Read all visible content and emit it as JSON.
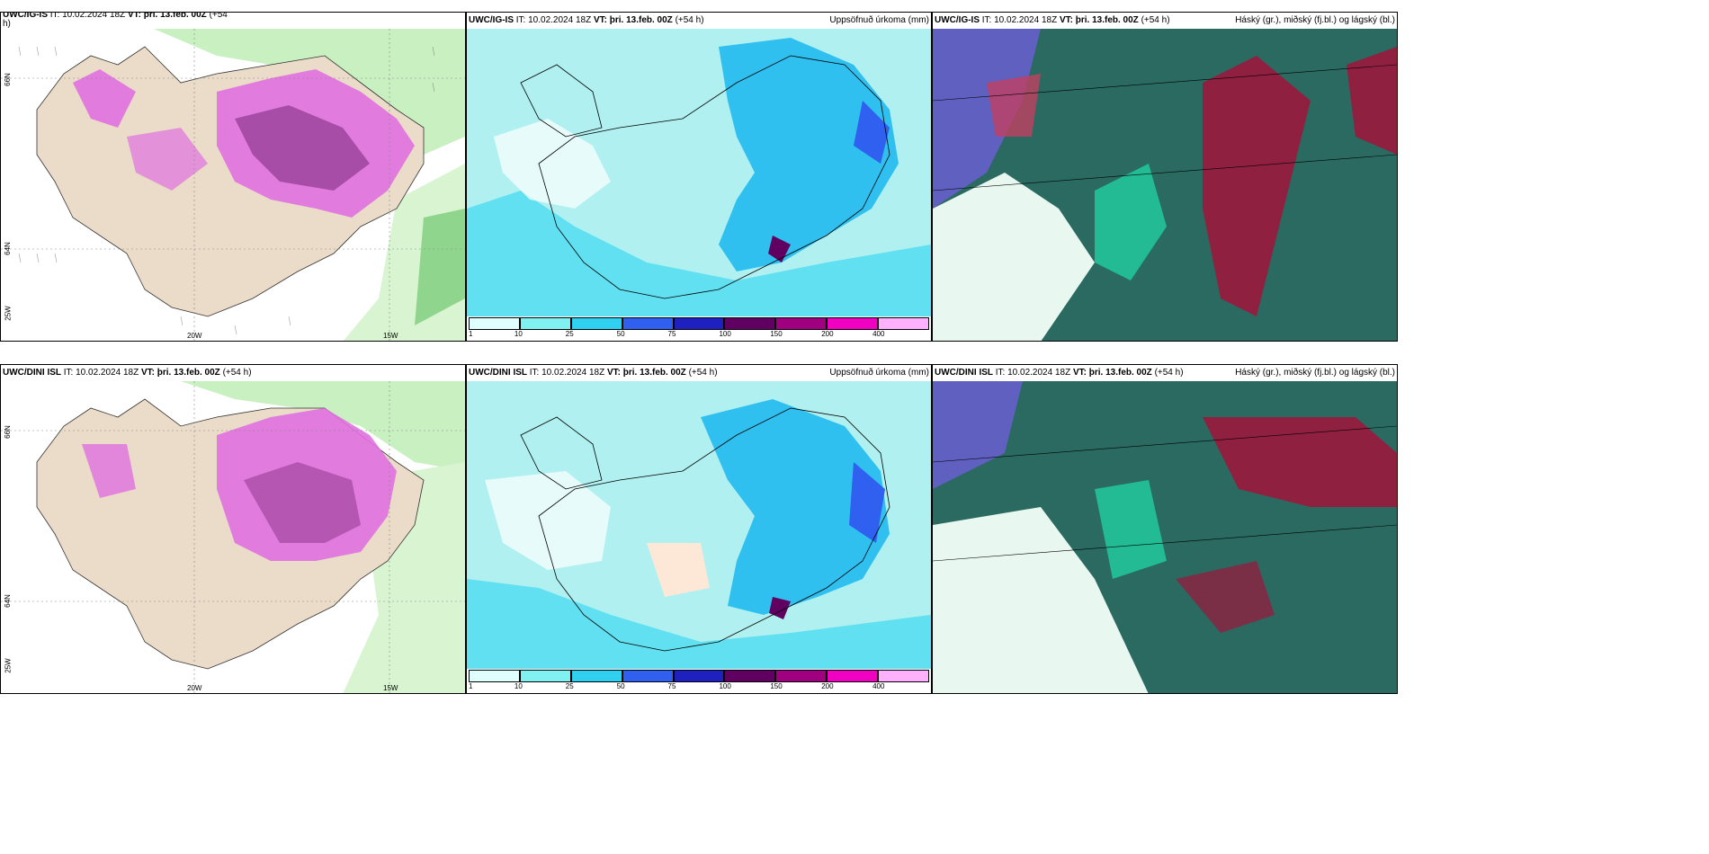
{
  "panels": {
    "p1": {
      "title_left": "UWC/IG-IS",
      "it": "IT: 10.02.2024 18Z",
      "vt": "VT: þri. 13.feb. 00Z",
      "lead": "(+54",
      "suffix": "h)",
      "title_right": ""
    },
    "p2": {
      "title_left": "UWC/IG-IS",
      "it": "IT: 10.02.2024 18Z",
      "vt": "VT: þri. 13.feb. 00Z",
      "lead": "(+54 h)",
      "title_right": "Uppsöfnuð úrkoma (mm)"
    },
    "p3": {
      "title_left": "UWC/IG-IS",
      "it": "IT: 10.02.2024 18Z",
      "vt": "VT: þri. 13.feb. 00Z",
      "lead": "(+54 h)",
      "title_right": "Háský (gr.), miðský (fj.bl.) og lágský (bl.)"
    },
    "p4": {
      "title_left": "UWC/DINI ISL",
      "it": "IT: 10.02.2024 18Z",
      "vt": "VT: þri. 13.feb. 00Z",
      "lead": "(+54 h)",
      "title_right": ""
    },
    "p5": {
      "title_left": "UWC/DINI ISL",
      "it": "IT: 10.02.2024 18Z",
      "vt": "VT: þri. 13.feb. 00Z",
      "lead": "(+54 h)",
      "title_right": "Uppsöfnuð úrkoma (mm)"
    },
    "p6": {
      "title_left": "UWC/DINI ISL",
      "it": "IT: 10.02.2024 18Z",
      "vt": "VT: þri. 13.feb. 00Z",
      "lead": "(+54 h)",
      "title_right": "Háský (gr.), miðský (fj.bl.) og lágský (bl.)"
    }
  },
  "axes": {
    "lon_20w": "20W",
    "lon_15w": "15W",
    "lat_66n": "66N",
    "lat_64n": "64N",
    "lon_25w": "25W"
  },
  "colorbar": {
    "labels": [
      "1",
      "10",
      "25",
      "50",
      "75",
      "100",
      "150",
      "200",
      "400"
    ],
    "colors": [
      "#e0ffff",
      "#80f0f0",
      "#30d0f0",
      "#3060f0",
      "#2020c0",
      "#600060",
      "#a00080",
      "#f000c0",
      "#ffb0ff"
    ]
  },
  "colors": {
    "land": "#eadcc8",
    "sea": "#ffffff",
    "snow_pink": "#e070e0",
    "snow_dark": "#702070",
    "green_light": "#c8f0c0",
    "green_mid": "#60c060",
    "precip_bg": "#b0f0f0",
    "cloud_teal": "#2a6a60",
    "cloud_green": "#20d0a0",
    "cloud_red": "#902040",
    "cloud_blue": "#6060c0"
  }
}
